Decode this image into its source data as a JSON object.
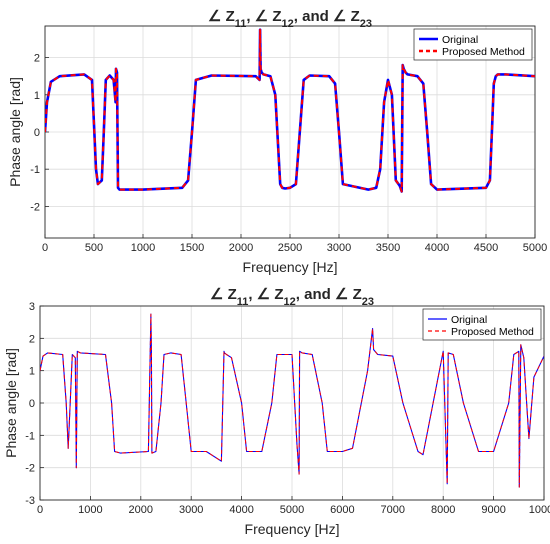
{
  "charts": [
    {
      "title": "∠ Z11, ∠ Z12, and ∠ Z23",
      "title_parts": [
        "∠ Z",
        "11",
        ", ∠ Z",
        "12",
        ", and ∠ Z",
        "23"
      ],
      "xlabel": "Frequency [Hz]",
      "ylabel": "Phase angle [rad]",
      "xlim": [
        0,
        5000
      ],
      "ylim": [
        -2.85,
        2.85
      ],
      "xticks": [
        0,
        500,
        1000,
        1500,
        2000,
        2500,
        3000,
        3500,
        4000,
        4500,
        5000
      ],
      "yticks": [
        -2,
        -1,
        0,
        1,
        2
      ],
      "legend": [
        "Original",
        "Proposed Method"
      ],
      "style": "bold"
    },
    {
      "title": "∠ Z11, ∠ Z12, and ∠ Z23",
      "title_parts": [
        "∠ Z",
        "11",
        ", ∠ Z",
        "12",
        ", and ∠ Z",
        "23"
      ],
      "xlabel": "Frequency [Hz]",
      "ylabel": "Phase angle [rad]",
      "xlim": [
        0,
        10000
      ],
      "ylim": [
        -3,
        3
      ],
      "xticks": [
        0,
        1000,
        2000,
        3000,
        4000,
        5000,
        6000,
        7000,
        8000,
        9000,
        10000
      ],
      "yticks": [
        -3,
        -2,
        -1,
        0,
        1,
        2,
        3
      ],
      "legend": [
        "Original",
        "Proposed Method"
      ],
      "style": "thin"
    }
  ],
  "colors": {
    "original": "#0000ff",
    "proposed": "#ff0000",
    "grid": "#dcdcdc",
    "axis": "#262626"
  },
  "chart_data": [
    {
      "type": "line",
      "title": "∠ Z11, ∠ Z12, and ∠ Z23",
      "xlabel": "Frequency [Hz]",
      "ylabel": "Phase angle [rad]",
      "xlim": [
        0,
        5000
      ],
      "ylim": [
        -2.85,
        2.85
      ],
      "grid": true,
      "legend_position": "top-right",
      "series": [
        {
          "name": "Original",
          "x": [
            0,
            20,
            60,
            150,
            400,
            480,
            520,
            540,
            580,
            600,
            620,
            660,
            700,
            720,
            725,
            735,
            745,
            760,
            800,
            1000,
            1400,
            1460,
            1500,
            1540,
            1700,
            2150,
            2190,
            2195,
            2200,
            2210,
            2230,
            2300,
            2350,
            2400,
            2420,
            2450,
            2500,
            2560,
            2600,
            2640,
            2700,
            2900,
            2960,
            3000,
            3040,
            3300,
            3380,
            3420,
            3460,
            3500,
            3540,
            3580,
            3620,
            3640,
            3650,
            3660,
            3680,
            3700,
            3800,
            3860,
            3900,
            3940,
            4000,
            4500,
            4540,
            4560,
            4580,
            4600,
            4620,
            4700,
            5000
          ],
          "y": [
            0,
            0.8,
            1.35,
            1.5,
            1.55,
            1.4,
            -1.0,
            -1.4,
            -1.3,
            0,
            1.4,
            1.52,
            1.4,
            0.8,
            1.7,
            1.6,
            -1.5,
            -1.55,
            -1.55,
            -1.55,
            -1.5,
            -1.3,
            0,
            1.4,
            1.52,
            1.5,
            1.4,
            2.75,
            1.7,
            1.6,
            1.55,
            1.5,
            1.0,
            -1.4,
            -1.5,
            -1.52,
            -1.5,
            -1.4,
            0,
            1.4,
            1.52,
            1.5,
            1.3,
            0,
            -1.4,
            -1.55,
            -1.5,
            -1.0,
            0.8,
            1.4,
            1.0,
            -1.3,
            -1.45,
            -1.6,
            1.8,
            1.7,
            1.6,
            1.55,
            1.5,
            1.3,
            0,
            -1.4,
            -1.55,
            -1.5,
            -1.3,
            0,
            1.3,
            1.5,
            1.55,
            1.55,
            1.5
          ]
        },
        {
          "name": "Proposed Method",
          "x": [
            0,
            20,
            60,
            150,
            400,
            480,
            520,
            540,
            580,
            600,
            620,
            660,
            700,
            720,
            725,
            735,
            745,
            760,
            800,
            1000,
            1400,
            1460,
            1500,
            1540,
            1700,
            2150,
            2190,
            2195,
            2200,
            2210,
            2230,
            2300,
            2350,
            2400,
            2420,
            2450,
            2500,
            2560,
            2600,
            2640,
            2700,
            2900,
            2960,
            3000,
            3040,
            3300,
            3380,
            3420,
            3460,
            3500,
            3540,
            3580,
            3620,
            3640,
            3650,
            3660,
            3680,
            3700,
            3800,
            3860,
            3900,
            3940,
            4000,
            4500,
            4540,
            4560,
            4580,
            4600,
            4620,
            4700,
            5000
          ],
          "y": [
            0,
            0.8,
            1.35,
            1.5,
            1.55,
            1.4,
            -1.0,
            -1.4,
            -1.3,
            0,
            1.4,
            1.52,
            1.4,
            0.8,
            1.7,
            1.6,
            -1.5,
            -1.55,
            -1.55,
            -1.55,
            -1.5,
            -1.3,
            0,
            1.4,
            1.52,
            1.5,
            1.4,
            2.75,
            1.7,
            1.6,
            1.55,
            1.5,
            1.0,
            -1.4,
            -1.5,
            -1.52,
            -1.5,
            -1.4,
            0,
            1.4,
            1.52,
            1.5,
            1.3,
            0,
            -1.4,
            -1.55,
            -1.5,
            -1.0,
            0.8,
            1.4,
            1.0,
            -1.3,
            -1.45,
            -1.6,
            1.8,
            1.7,
            1.6,
            1.55,
            1.5,
            1.3,
            0,
            -1.4,
            -1.55,
            -1.5,
            -1.3,
            0,
            1.3,
            1.5,
            1.55,
            1.55,
            1.5
          ]
        }
      ]
    },
    {
      "type": "line",
      "title": "∠ Z11, ∠ Z12, and ∠ Z23",
      "xlabel": "Frequency [Hz]",
      "ylabel": "Phase angle [rad]",
      "xlim": [
        0,
        10000
      ],
      "ylim": [
        -3,
        3
      ],
      "grid": true,
      "legend_position": "top-right",
      "series": [
        {
          "name": "Original",
          "x": [
            0,
            60,
            150,
            450,
            520,
            560,
            600,
            640,
            700,
            720,
            740,
            800,
            1300,
            1420,
            1480,
            1600,
            2150,
            2200,
            2210,
            2220,
            2300,
            2400,
            2460,
            2600,
            2800,
            2900,
            3000,
            3300,
            3600,
            3650,
            3660,
            3700,
            3800,
            4000,
            4100,
            4400,
            4600,
            4700,
            5000,
            5100,
            5140,
            5150,
            5200,
            5400,
            5600,
            5700,
            6000,
            6200,
            6500,
            6600,
            6620,
            6700,
            7000,
            7200,
            7500,
            7600,
            8000,
            8080,
            8100,
            8200,
            8400,
            8700,
            9000,
            9300,
            9400,
            9500,
            9510,
            9540,
            9600,
            9700,
            9800,
            10000
          ],
          "y": [
            1.0,
            1.45,
            1.55,
            1.5,
            0,
            -1.4,
            0,
            1.5,
            1.4,
            -2.0,
            1.6,
            1.55,
            1.5,
            0,
            -1.5,
            -1.55,
            -1.5,
            2.75,
            1.6,
            -1.55,
            -1.5,
            0,
            1.5,
            1.55,
            1.5,
            0,
            -1.5,
            -1.5,
            -1.8,
            1.6,
            1.55,
            1.5,
            1.4,
            0,
            -1.5,
            -1.5,
            0,
            1.5,
            1.5,
            -1.3,
            -2.2,
            1.6,
            1.55,
            1.5,
            0,
            -1.5,
            -1.5,
            -1.4,
            1.0,
            2.3,
            1.65,
            1.5,
            1.45,
            0,
            -1.5,
            -1.6,
            1.6,
            -2.5,
            1.55,
            1.5,
            0,
            -1.5,
            -1.5,
            0,
            1.5,
            1.6,
            -2.6,
            1.8,
            1.4,
            -1.1,
            0.8,
            1.45
          ]
        },
        {
          "name": "Proposed Method",
          "x": [
            0,
            60,
            150,
            450,
            520,
            560,
            600,
            640,
            700,
            720,
            740,
            800,
            1300,
            1420,
            1480,
            1600,
            2150,
            2200,
            2210,
            2220,
            2300,
            2400,
            2460,
            2600,
            2800,
            2900,
            3000,
            3300,
            3600,
            3650,
            3660,
            3700,
            3800,
            4000,
            4100,
            4400,
            4600,
            4700,
            5000,
            5100,
            5140,
            5150,
            5200,
            5400,
            5600,
            5700,
            6000,
            6200,
            6500,
            6600,
            6620,
            6700,
            7000,
            7200,
            7500,
            7600,
            8000,
            8080,
            8100,
            8200,
            8400,
            8700,
            9000,
            9300,
            9400,
            9500,
            9510,
            9540,
            9600,
            9700,
            9800,
            10000
          ],
          "y": [
            1.0,
            1.45,
            1.55,
            1.5,
            0,
            -1.4,
            0,
            1.5,
            1.4,
            -2.0,
            1.6,
            1.55,
            1.5,
            0,
            -1.5,
            -1.55,
            -1.5,
            2.75,
            1.6,
            -1.55,
            -1.5,
            0,
            1.5,
            1.55,
            1.5,
            0,
            -1.5,
            -1.5,
            -1.8,
            1.6,
            1.55,
            1.5,
            1.4,
            0,
            -1.5,
            -1.5,
            0,
            1.5,
            1.5,
            -1.3,
            -2.2,
            1.6,
            1.55,
            1.5,
            0,
            -1.5,
            -1.5,
            -1.4,
            1.0,
            2.3,
            1.65,
            1.5,
            1.45,
            0,
            -1.5,
            -1.6,
            1.6,
            -2.5,
            1.55,
            1.5,
            0,
            -1.5,
            -1.5,
            0,
            1.5,
            1.6,
            -2.6,
            1.8,
            1.4,
            -1.1,
            0.8,
            1.45
          ]
        }
      ]
    }
  ]
}
